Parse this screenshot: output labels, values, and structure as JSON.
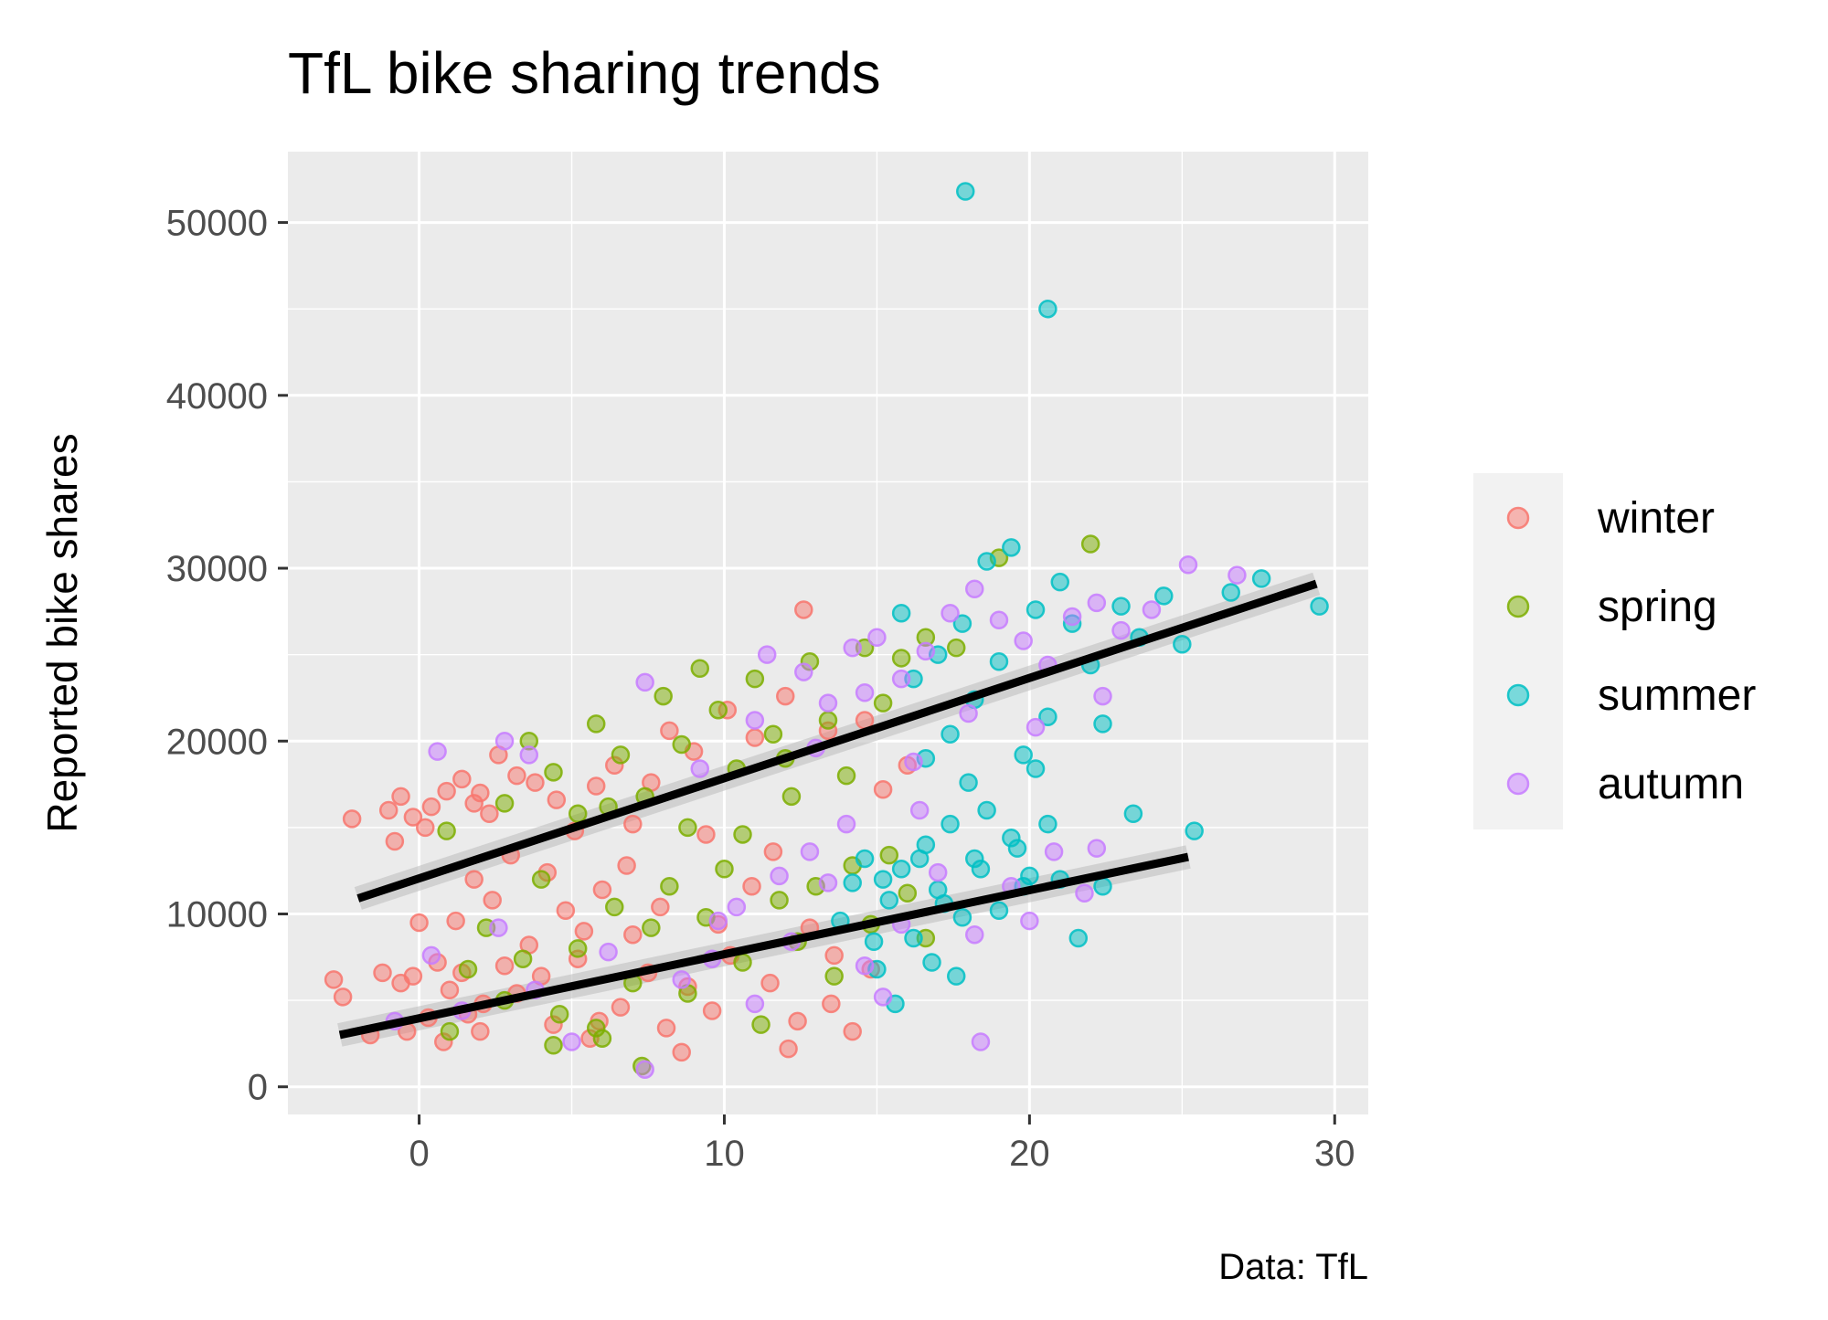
{
  "chart_data": {
    "type": "scatter",
    "title": "TfL bike sharing trends",
    "xlabel": "",
    "ylabel": "Reported bike shares",
    "caption": "Data: TfL",
    "xlim": [
      -4.3,
      31.1
    ],
    "ylim": [
      -1600,
      54100
    ],
    "x_ticks": [
      0,
      10,
      20,
      30
    ],
    "x_tick_labels": [
      "0",
      "10",
      "20",
      "30"
    ],
    "y_ticks": [
      0,
      10000,
      20000,
      30000,
      40000,
      50000
    ],
    "y_tick_labels": [
      "0",
      "10000",
      "20000",
      "30000",
      "40000",
      "50000"
    ],
    "grid": true,
    "legend_position": "right",
    "point_alpha": 0.5,
    "series": [
      {
        "name": "winter",
        "color": "#F8766D",
        "points": [
          [
            -2.2,
            15500
          ],
          [
            -1.0,
            16000
          ],
          [
            -0.6,
            16800
          ],
          [
            -0.2,
            15600
          ],
          [
            0.4,
            16200
          ],
          [
            0.9,
            17100
          ],
          [
            1.4,
            17800
          ],
          [
            2.0,
            17000
          ],
          [
            2.6,
            19200
          ],
          [
            3.2,
            18000
          ],
          [
            -0.8,
            14200
          ],
          [
            0.2,
            15000
          ],
          [
            1.8,
            16400
          ],
          [
            2.3,
            15800
          ],
          [
            3.8,
            17600
          ],
          [
            4.5,
            16600
          ],
          [
            5.1,
            14800
          ],
          [
            5.8,
            17400
          ],
          [
            6.4,
            18600
          ],
          [
            7.0,
            15200
          ],
          [
            8.2,
            20600
          ],
          [
            9.0,
            19400
          ],
          [
            10.1,
            21800
          ],
          [
            11.0,
            20200
          ],
          [
            12.0,
            22600
          ],
          [
            12.6,
            27600
          ],
          [
            13.4,
            20600
          ],
          [
            14.6,
            21200
          ],
          [
            15.2,
            17200
          ],
          [
            16.0,
            18600
          ],
          [
            -2.8,
            6200
          ],
          [
            -2.5,
            5200
          ],
          [
            -1.6,
            3000
          ],
          [
            -1.2,
            6600
          ],
          [
            -0.6,
            6000
          ],
          [
            -0.2,
            6400
          ],
          [
            0.0,
            9500
          ],
          [
            0.3,
            4000
          ],
          [
            0.6,
            7200
          ],
          [
            1.0,
            5600
          ],
          [
            1.2,
            9600
          ],
          [
            1.6,
            4200
          ],
          [
            2.0,
            3200
          ],
          [
            2.4,
            10800
          ],
          [
            2.8,
            7000
          ],
          [
            3.2,
            5400
          ],
          [
            3.6,
            8200
          ],
          [
            4.0,
            6400
          ],
          [
            4.4,
            3600
          ],
          [
            4.8,
            10200
          ],
          [
            5.2,
            7400
          ],
          [
            5.6,
            2800
          ],
          [
            6.0,
            11400
          ],
          [
            6.6,
            4600
          ],
          [
            7.0,
            8800
          ],
          [
            7.5,
            6600
          ],
          [
            8.1,
            3400
          ],
          [
            8.8,
            5800
          ],
          [
            9.6,
            4400
          ],
          [
            10.2,
            7600
          ],
          [
            10.9,
            11600
          ],
          [
            11.5,
            6000
          ],
          [
            12.1,
            2200
          ],
          [
            12.8,
            9200
          ],
          [
            13.5,
            4800
          ],
          [
            14.2,
            3200
          ],
          [
            14.8,
            6800
          ],
          [
            -0.4,
            3200
          ],
          [
            0.8,
            2600
          ],
          [
            1.8,
            12000
          ],
          [
            3.0,
            13400
          ],
          [
            4.2,
            12400
          ],
          [
            5.4,
            9000
          ],
          [
            6.8,
            12800
          ],
          [
            8.6,
            2000
          ],
          [
            11.6,
            13600
          ],
          [
            9.4,
            14600
          ],
          [
            7.6,
            17600
          ],
          [
            1.4,
            6600
          ],
          [
            2.1,
            4800
          ],
          [
            5.9,
            3800
          ],
          [
            7.9,
            10400
          ],
          [
            9.8,
            9400
          ],
          [
            12.4,
            3800
          ],
          [
            13.6,
            7600
          ]
        ]
      },
      {
        "name": "spring",
        "color": "#7CAE00",
        "points": [
          [
            0.9,
            14800
          ],
          [
            2.8,
            16400
          ],
          [
            3.6,
            20000
          ],
          [
            4.4,
            18200
          ],
          [
            5.2,
            15800
          ],
          [
            5.8,
            21000
          ],
          [
            6.6,
            19200
          ],
          [
            7.4,
            16800
          ],
          [
            8.0,
            22600
          ],
          [
            8.6,
            19800
          ],
          [
            9.2,
            24200
          ],
          [
            9.8,
            21800
          ],
          [
            10.4,
            18400
          ],
          [
            11.0,
            23600
          ],
          [
            11.6,
            20400
          ],
          [
            12.2,
            16800
          ],
          [
            12.8,
            24600
          ],
          [
            13.4,
            21200
          ],
          [
            14.0,
            18000
          ],
          [
            14.6,
            25400
          ],
          [
            15.2,
            22200
          ],
          [
            15.8,
            24800
          ],
          [
            16.6,
            26000
          ],
          [
            17.6,
            25400
          ],
          [
            19.0,
            30600
          ],
          [
            22.0,
            31400
          ],
          [
            8.8,
            15000
          ],
          [
            10.6,
            14600
          ],
          [
            12.0,
            19000
          ],
          [
            6.2,
            16200
          ],
          [
            1.0,
            3200
          ],
          [
            1.6,
            6800
          ],
          [
            2.2,
            9200
          ],
          [
            2.8,
            5000
          ],
          [
            3.4,
            7400
          ],
          [
            4.0,
            12000
          ],
          [
            4.6,
            4200
          ],
          [
            5.2,
            8000
          ],
          [
            5.8,
            3400
          ],
          [
            6.4,
            10400
          ],
          [
            7.0,
            6000
          ],
          [
            7.6,
            9200
          ],
          [
            8.2,
            11600
          ],
          [
            8.8,
            5400
          ],
          [
            9.4,
            9800
          ],
          [
            10.0,
            12600
          ],
          [
            10.6,
            7200
          ],
          [
            11.2,
            3600
          ],
          [
            11.8,
            10800
          ],
          [
            12.4,
            8400
          ],
          [
            13.0,
            11600
          ],
          [
            13.6,
            6400
          ],
          [
            14.2,
            12800
          ],
          [
            14.8,
            9400
          ],
          [
            15.4,
            13400
          ],
          [
            16.0,
            11200
          ],
          [
            16.6,
            8600
          ],
          [
            7.3,
            1200
          ],
          [
            4.4,
            2400
          ],
          [
            6.0,
            2800
          ]
        ]
      },
      {
        "name": "summer",
        "color": "#00BFC4",
        "points": [
          [
            17.9,
            51800
          ],
          [
            20.6,
            45000
          ],
          [
            29.5,
            27800
          ],
          [
            27.6,
            29400
          ],
          [
            26.6,
            28600
          ],
          [
            25.0,
            25600
          ],
          [
            24.4,
            28400
          ],
          [
            23.6,
            26000
          ],
          [
            23.0,
            27800
          ],
          [
            22.4,
            21000
          ],
          [
            22.0,
            24400
          ],
          [
            21.4,
            26800
          ],
          [
            21.0,
            29200
          ],
          [
            20.6,
            21400
          ],
          [
            20.2,
            27600
          ],
          [
            19.8,
            19200
          ],
          [
            19.4,
            31200
          ],
          [
            19.0,
            24600
          ],
          [
            18.6,
            30400
          ],
          [
            18.2,
            22400
          ],
          [
            17.8,
            26800
          ],
          [
            17.4,
            20400
          ],
          [
            17.0,
            25000
          ],
          [
            16.6,
            19000
          ],
          [
            16.2,
            23600
          ],
          [
            15.8,
            27400
          ],
          [
            25.4,
            14800
          ],
          [
            23.4,
            15800
          ],
          [
            22.4,
            11600
          ],
          [
            21.6,
            8600
          ],
          [
            21.0,
            12000
          ],
          [
            20.6,
            15200
          ],
          [
            20.2,
            18400
          ],
          [
            19.8,
            11600
          ],
          [
            19.4,
            14400
          ],
          [
            19.0,
            10200
          ],
          [
            18.6,
            16000
          ],
          [
            18.2,
            13200
          ],
          [
            17.8,
            9800
          ],
          [
            17.4,
            15200
          ],
          [
            17.0,
            11400
          ],
          [
            16.6,
            14000
          ],
          [
            16.2,
            8600
          ],
          [
            15.8,
            12600
          ],
          [
            15.4,
            10800
          ],
          [
            15.0,
            6800
          ],
          [
            14.6,
            13200
          ],
          [
            14.2,
            11800
          ],
          [
            13.8,
            9600
          ],
          [
            15.6,
            4800
          ],
          [
            16.8,
            7200
          ],
          [
            17.6,
            6400
          ],
          [
            18.4,
            12600
          ],
          [
            19.6,
            13800
          ],
          [
            20.0,
            12200
          ],
          [
            18.0,
            17600
          ],
          [
            16.4,
            13200
          ],
          [
            15.2,
            12000
          ],
          [
            17.2,
            10600
          ],
          [
            14.9,
            8400
          ]
        ]
      },
      {
        "name": "autumn",
        "color": "#C77CFF",
        "points": [
          [
            0.6,
            19400
          ],
          [
            2.8,
            20000
          ],
          [
            3.6,
            19200
          ],
          [
            7.4,
            23400
          ],
          [
            9.2,
            18400
          ],
          [
            11.4,
            25000
          ],
          [
            12.6,
            24000
          ],
          [
            13.4,
            22200
          ],
          [
            14.2,
            25400
          ],
          [
            15.0,
            26000
          ],
          [
            15.8,
            23600
          ],
          [
            16.6,
            25200
          ],
          [
            17.4,
            27400
          ],
          [
            18.2,
            28800
          ],
          [
            19.0,
            27000
          ],
          [
            19.8,
            25800
          ],
          [
            20.6,
            24400
          ],
          [
            21.4,
            27200
          ],
          [
            22.2,
            28000
          ],
          [
            23.0,
            26400
          ],
          [
            24.0,
            27600
          ],
          [
            25.2,
            30200
          ],
          [
            26.8,
            29600
          ],
          [
            11.0,
            21200
          ],
          [
            13.0,
            19600
          ],
          [
            14.6,
            22800
          ],
          [
            16.2,
            18800
          ],
          [
            18.0,
            21600
          ],
          [
            20.2,
            20800
          ],
          [
            22.4,
            22600
          ],
          [
            -0.8,
            3800
          ],
          [
            0.4,
            7600
          ],
          [
            1.4,
            4400
          ],
          [
            2.6,
            9200
          ],
          [
            3.8,
            5600
          ],
          [
            5.0,
            2600
          ],
          [
            6.2,
            7800
          ],
          [
            7.4,
            1000
          ],
          [
            8.6,
            6200
          ],
          [
            9.8,
            9600
          ],
          [
            11.0,
            4800
          ],
          [
            12.2,
            8400
          ],
          [
            13.4,
            11800
          ],
          [
            14.6,
            7000
          ],
          [
            15.8,
            9400
          ],
          [
            17.0,
            12400
          ],
          [
            18.2,
            8800
          ],
          [
            18.4,
            2600
          ],
          [
            19.4,
            11600
          ],
          [
            20.8,
            13600
          ],
          [
            21.8,
            11200
          ],
          [
            22.2,
            13800
          ],
          [
            14.0,
            15200
          ],
          [
            16.4,
            16000
          ],
          [
            12.8,
            13600
          ],
          [
            10.4,
            10400
          ],
          [
            11.8,
            12200
          ],
          [
            9.6,
            7400
          ],
          [
            15.2,
            5200
          ],
          [
            20.0,
            9600
          ]
        ]
      }
    ],
    "trend_lines": [
      {
        "x": [
          -2.0,
          29.4
        ],
        "y": [
          10900,
          29100
        ]
      },
      {
        "x": [
          -2.6,
          25.2
        ],
        "y": [
          3000,
          13300
        ]
      }
    ]
  }
}
